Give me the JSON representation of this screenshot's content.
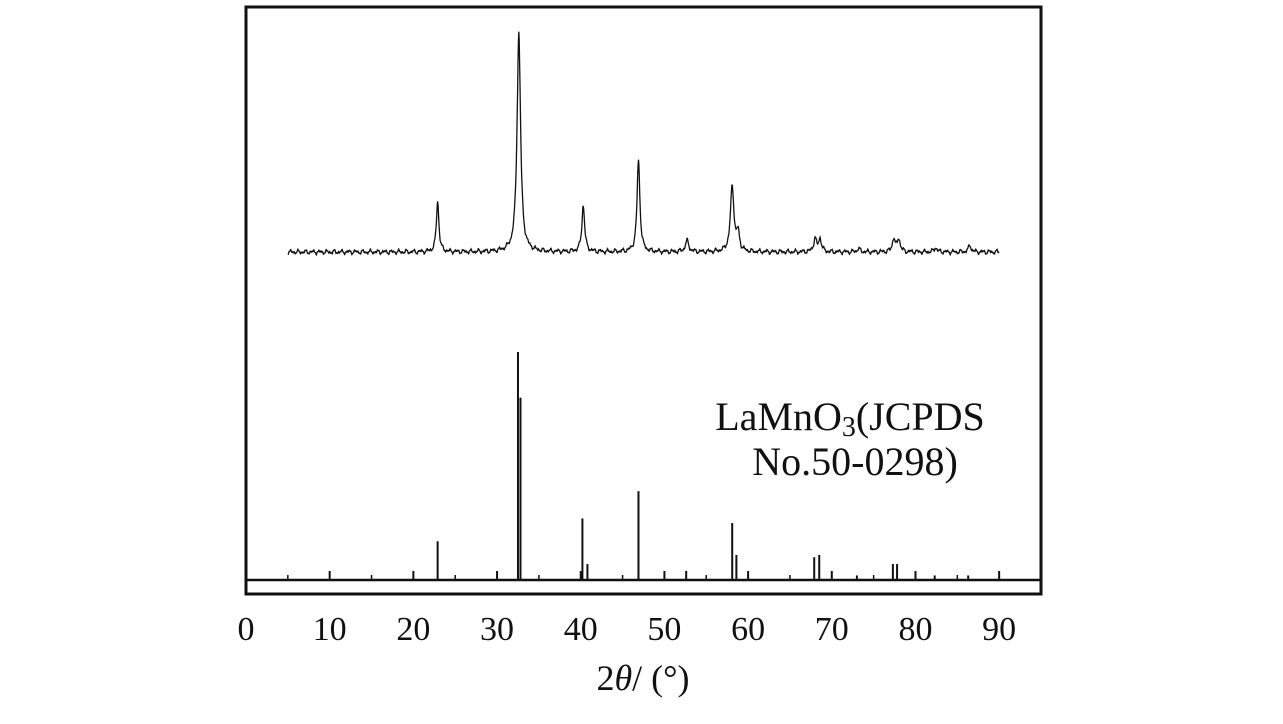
{
  "chart_data": {
    "type": "line",
    "title": "",
    "xlabel": {
      "prefix": "2",
      "symbol": "θ",
      "suffix": "/ (°)"
    },
    "ylabel": "",
    "xlim": [
      0,
      95
    ],
    "x_ticks": [
      0,
      10,
      20,
      30,
      40,
      50,
      60,
      70,
      80,
      90
    ],
    "grid": false,
    "legend": "none",
    "annotation": {
      "line1_main": "LaMnO",
      "line1_sub": "3",
      "line1_rest": "(JCPDS",
      "line2": "No.50-0298)"
    },
    "series": [
      {
        "kind": "pattern",
        "peaks": [
          {
            "x": 22.9,
            "h": 0.23,
            "w": 0.18
          },
          {
            "x": 32.6,
            "h": 1.0,
            "w": 0.25
          },
          {
            "x": 40.3,
            "h": 0.21,
            "w": 0.2
          },
          {
            "x": 46.9,
            "h": 0.42,
            "w": 0.2
          },
          {
            "x": 52.7,
            "h": 0.05,
            "w": 0.25
          },
          {
            "x": 58.1,
            "h": 0.3,
            "w": 0.25
          },
          {
            "x": 58.8,
            "h": 0.08,
            "w": 0.2
          },
          {
            "x": 68.0,
            "h": 0.06,
            "w": 0.2
          },
          {
            "x": 68.6,
            "h": 0.06,
            "w": 0.2
          },
          {
            "x": 73.2,
            "h": 0.015,
            "w": 0.2
          },
          {
            "x": 77.4,
            "h": 0.06,
            "w": 0.2
          },
          {
            "x": 78.0,
            "h": 0.06,
            "w": 0.2
          },
          {
            "x": 82.4,
            "h": 0.02,
            "w": 0.2
          },
          {
            "x": 86.5,
            "h": 0.03,
            "w": 0.2
          }
        ],
        "x_range": [
          5,
          90
        ]
      },
      {
        "kind": "reference",
        "sticks": [
          {
            "x": 22.9,
            "h": 0.17
          },
          {
            "x": 32.5,
            "h": 1.0
          },
          {
            "x": 32.8,
            "h": 0.8
          },
          {
            "x": 40.2,
            "h": 0.27
          },
          {
            "x": 40.8,
            "h": 0.07
          },
          {
            "x": 46.9,
            "h": 0.39
          },
          {
            "x": 52.6,
            "h": 0.04
          },
          {
            "x": 58.1,
            "h": 0.25
          },
          {
            "x": 58.6,
            "h": 0.11
          },
          {
            "x": 67.9,
            "h": 0.1
          },
          {
            "x": 68.5,
            "h": 0.11
          },
          {
            "x": 73.0,
            "h": 0.02
          },
          {
            "x": 77.3,
            "h": 0.07
          },
          {
            "x": 77.8,
            "h": 0.07
          },
          {
            "x": 82.3,
            "h": 0.02
          },
          {
            "x": 86.3,
            "h": 0.02
          }
        ]
      }
    ]
  }
}
